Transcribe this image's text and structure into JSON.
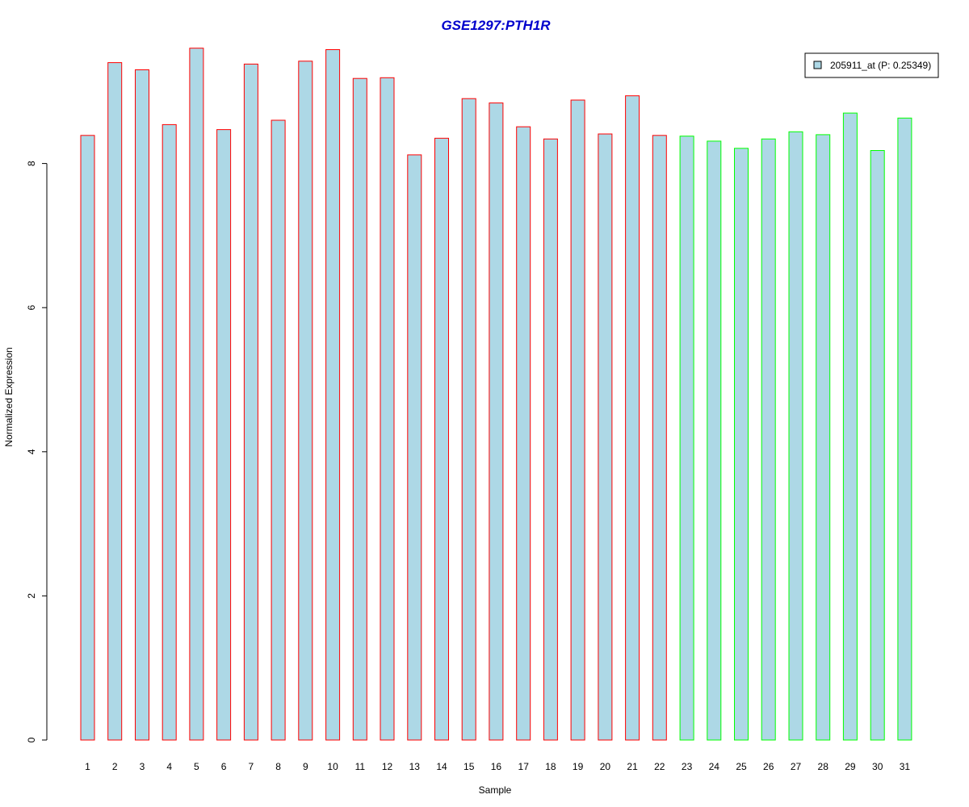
{
  "chart_data": {
    "type": "bar",
    "title": "GSE1297:PTH1R",
    "xlabel": "Sample",
    "ylabel": "Normalized Expression",
    "categories": [
      "1",
      "2",
      "3",
      "4",
      "5",
      "6",
      "7",
      "8",
      "9",
      "10",
      "11",
      "12",
      "13",
      "14",
      "15",
      "16",
      "17",
      "18",
      "19",
      "20",
      "21",
      "22",
      "23",
      "24",
      "25",
      "26",
      "27",
      "28",
      "29",
      "30",
      "31"
    ],
    "values": [
      8.39,
      9.4,
      9.3,
      8.54,
      9.6,
      8.47,
      9.38,
      8.6,
      9.42,
      9.58,
      9.18,
      9.19,
      8.12,
      8.35,
      8.9,
      8.84,
      8.51,
      8.34,
      8.88,
      8.41,
      8.94,
      8.39,
      8.38,
      8.31,
      8.21,
      8.34,
      8.44,
      8.4,
      8.7,
      8.18,
      8.63
    ],
    "yticks": [
      0,
      2,
      4,
      6,
      8
    ],
    "ylim": [
      0,
      9.6
    ],
    "grid": false,
    "legend": {
      "position": "top-right",
      "entries": [
        {
          "label": "205911_at (P: 0.25349)",
          "color": "#add8e6"
        }
      ]
    },
    "colors": {
      "title": "#0000cc",
      "bar_fill": "#add8e6",
      "group_1_border": "#ff0000",
      "group_2_border": "#00ff00"
    },
    "groups": [
      {
        "samples": [
          "1",
          "2",
          "3",
          "4",
          "5",
          "6",
          "7",
          "8",
          "9",
          "10",
          "11",
          "12",
          "13",
          "14",
          "15",
          "16",
          "17",
          "18",
          "19",
          "20",
          "21",
          "22"
        ],
        "border_color": "#ff0000"
      },
      {
        "samples": [
          "23",
          "24",
          "25",
          "26",
          "27",
          "28",
          "29",
          "30",
          "31"
        ],
        "border_color": "#00ff00"
      }
    ]
  }
}
